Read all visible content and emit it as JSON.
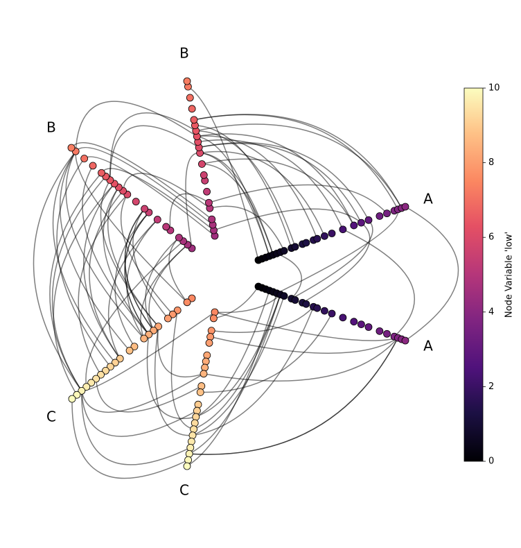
{
  "chart_data": {
    "type": "hive",
    "axes": [
      {
        "label": "A",
        "range": [
          0,
          4
        ],
        "values": [
          0.0,
          0.1,
          0.2,
          0.3,
          0.4,
          0.5,
          0.6,
          0.7,
          0.9,
          1.0,
          1.2,
          1.3,
          1.5,
          1.6,
          1.8,
          2.0,
          2.3,
          2.6,
          2.8,
          3.0,
          3.3,
          3.5,
          3.7,
          3.8,
          3.9,
          4.0
        ]
      },
      {
        "label": "A",
        "range": [
          0,
          4
        ],
        "values": [
          0.0,
          0.1,
          0.2,
          0.3,
          0.4,
          0.5,
          0.6,
          0.7,
          0.9,
          1.0,
          1.2,
          1.3,
          1.5,
          1.6,
          1.8,
          2.0,
          2.3,
          2.6,
          2.8,
          3.0,
          3.3,
          3.5,
          3.7,
          3.8,
          3.9,
          4.0
        ]
      },
      {
        "label": "B",
        "range": [
          4.5,
          7.3
        ],
        "values": [
          4.5,
          4.6,
          4.7,
          4.8,
          5.0,
          5.1,
          5.3,
          5.5,
          5.6,
          5.8,
          6.0,
          6.1,
          6.2,
          6.3,
          6.4,
          6.5,
          6.6,
          6.8,
          7.0,
          7.2,
          7.3
        ]
      },
      {
        "label": "B",
        "range": [
          4.5,
          7.3
        ],
        "values": [
          4.5,
          4.6,
          4.7,
          4.8,
          5.0,
          5.1,
          5.3,
          5.5,
          5.6,
          5.8,
          6.0,
          6.1,
          6.2,
          6.3,
          6.4,
          6.5,
          6.6,
          6.8,
          7.0,
          7.2,
          7.3
        ]
      },
      {
        "label": "C",
        "range": [
          7.5,
          10
        ],
        "values": [
          7.5,
          7.6,
          7.8,
          7.9,
          8.0,
          8.2,
          8.3,
          8.4,
          8.5,
          8.7,
          8.8,
          9.0,
          9.1,
          9.2,
          9.3,
          9.4,
          9.5,
          9.6,
          9.7,
          9.8,
          9.9,
          10
        ]
      },
      {
        "label": "C",
        "range": [
          7.5,
          10
        ],
        "values": [
          7.5,
          7.6,
          7.8,
          7.9,
          8.0,
          8.2,
          8.3,
          8.4,
          8.5,
          8.7,
          8.8,
          9.0,
          9.1,
          9.2,
          9.3,
          9.4,
          9.5,
          9.6,
          9.7,
          9.8,
          9.9,
          10
        ]
      }
    ],
    "colorbar": {
      "label": "Node Variable 'low'",
      "colormap": "magma",
      "clim": [
        0,
        10
      ],
      "ticks": [
        0,
        2,
        4,
        6,
        8,
        10
      ]
    }
  }
}
